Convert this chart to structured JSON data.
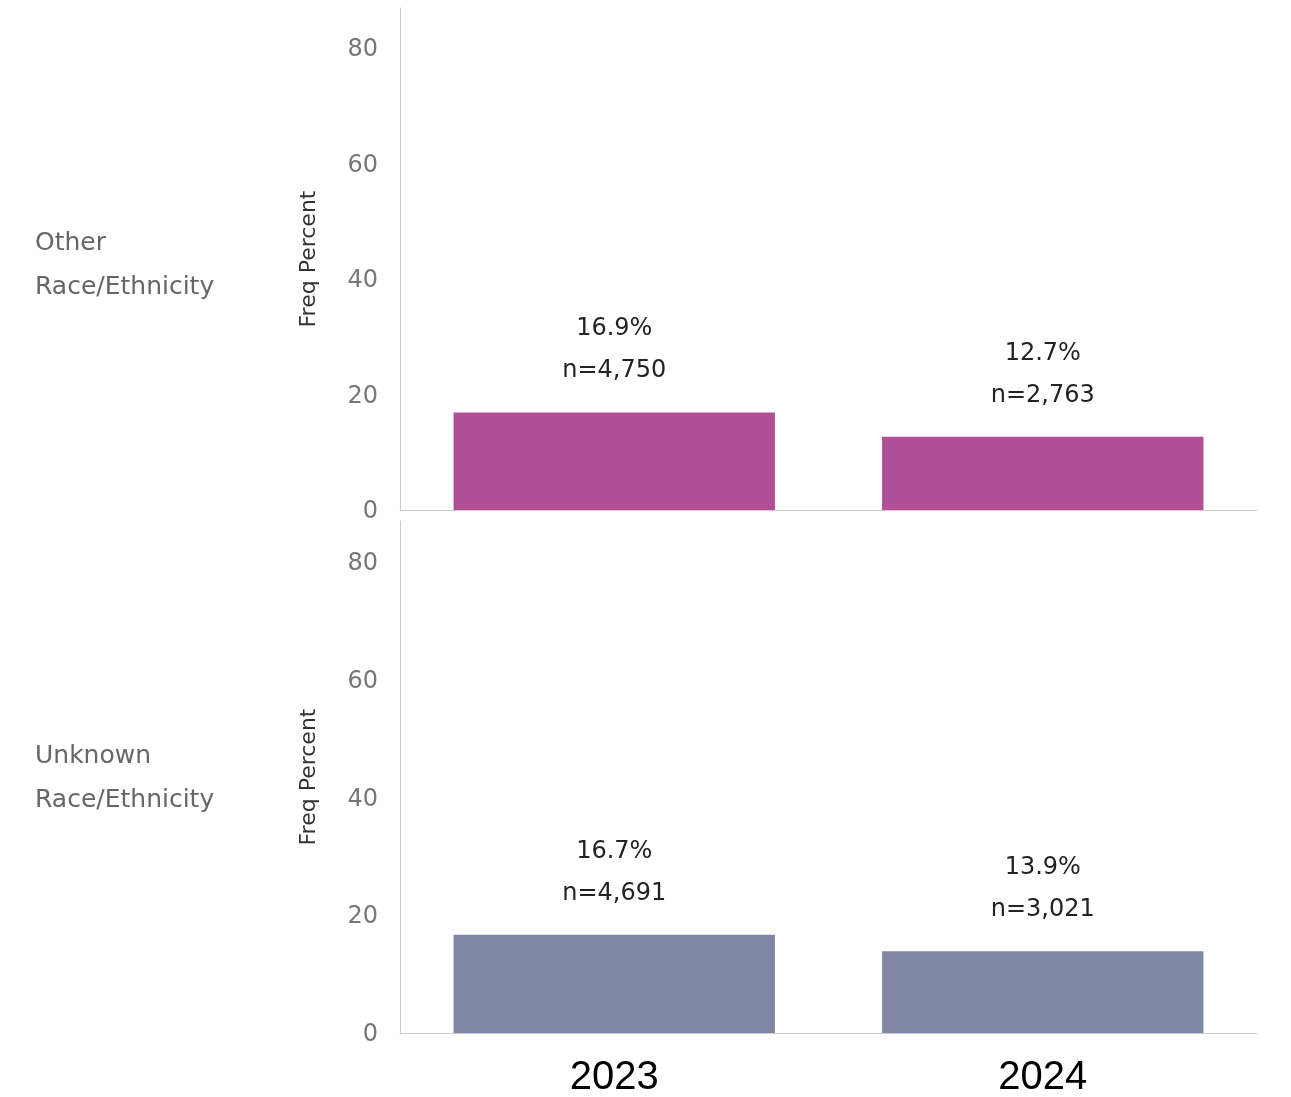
{
  "chart_data": [
    {
      "type": "bar",
      "title": "Other Race/Ethnicity",
      "ylabel": "Freq Percent",
      "categories": [
        "2023",
        "2024"
      ],
      "values": [
        16.9,
        12.7
      ],
      "color": "#b04f96",
      "value_labels": [
        "16.9%\nn=4,750",
        "12.7%\nn=2,763"
      ],
      "ylim": [
        0,
        87
      ],
      "yticks": [
        0,
        20,
        40,
        60,
        80
      ],
      "grid": false,
      "tick_labels": "y"
    },
    {
      "type": "bar",
      "title": "Unknown Race/Ethnicity",
      "ylabel": "Freq Percent",
      "categories": [
        "2023",
        "2024"
      ],
      "values": [
        16.7,
        13.9
      ],
      "color": "#7f87a6",
      "value_labels": [
        "16.7%\nn=4,691",
        "13.9%\nn=3,021"
      ],
      "ylim": [
        0,
        87
      ],
      "yticks": [
        0,
        20,
        40,
        60,
        80
      ],
      "grid": false
    }
  ]
}
